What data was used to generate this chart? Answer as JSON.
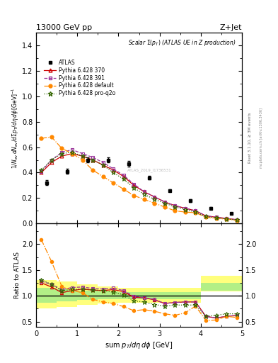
{
  "title_top": "13000 GeV pp",
  "title_right": "Z+Jet",
  "plot_title": "Scalar Σ(p_T) (ATLAS UE in Z production)",
  "ylabel_main": "1/N_{ev} dN_{ev}/dsum p_T/dη dφ  [GeV]^{-1}",
  "ylabel_ratio": "Ratio to ATLAS",
  "xlabel": "sum p_T/dη dφ [GeV]",
  "right_label": "Rivet 3.1.10, ≥ 3M events",
  "watermark": "mcplots.cern.ch [arXiv:1306.3436]",
  "atlas_label": "ATLAS_2019_I1736531",
  "atlas_x": [
    0.25,
    0.75,
    1.25,
    1.75,
    2.25,
    2.75,
    3.25,
    3.75,
    4.25,
    4.75
  ],
  "atlas_y": [
    0.32,
    0.41,
    0.5,
    0.5,
    0.47,
    0.36,
    0.26,
    0.18,
    0.12,
    0.08
  ],
  "atlas_yerr": [
    0.02,
    0.02,
    0.02,
    0.02,
    0.02,
    0.015,
    0.01,
    0.01,
    0.008,
    0.005
  ],
  "p370_x": [
    0.125,
    0.375,
    0.625,
    0.875,
    1.125,
    1.375,
    1.625,
    1.875,
    2.125,
    2.375,
    2.625,
    2.875,
    3.125,
    3.375,
    3.625,
    3.875,
    4.125,
    4.375,
    4.625,
    4.875
  ],
  "p370_y": [
    0.4,
    0.48,
    0.53,
    0.55,
    0.53,
    0.5,
    0.46,
    0.42,
    0.37,
    0.3,
    0.25,
    0.21,
    0.17,
    0.14,
    0.12,
    0.1,
    0.06,
    0.05,
    0.04,
    0.03
  ],
  "p391_x": [
    0.125,
    0.375,
    0.625,
    0.875,
    1.125,
    1.375,
    1.625,
    1.875,
    2.125,
    2.375,
    2.625,
    2.875,
    3.125,
    3.375,
    3.625,
    3.875,
    4.125,
    4.375,
    4.625,
    4.875
  ],
  "p391_y": [
    0.41,
    0.5,
    0.56,
    0.58,
    0.55,
    0.52,
    0.48,
    0.43,
    0.38,
    0.31,
    0.25,
    0.21,
    0.17,
    0.14,
    0.12,
    0.1,
    0.06,
    0.05,
    0.04,
    0.03
  ],
  "pdef_x": [
    0.125,
    0.375,
    0.625,
    0.875,
    1.125,
    1.375,
    1.625,
    1.875,
    2.125,
    2.375,
    2.625,
    2.875,
    3.125,
    3.375,
    3.625,
    3.875,
    4.125,
    4.375,
    4.625,
    4.875
  ],
  "pdef_y": [
    0.67,
    0.68,
    0.59,
    0.55,
    0.5,
    0.42,
    0.37,
    0.32,
    0.27,
    0.22,
    0.19,
    0.16,
    0.13,
    0.1,
    0.09,
    0.085,
    0.05,
    0.04,
    0.035,
    0.025
  ],
  "pq2o_x": [
    0.125,
    0.375,
    0.625,
    0.875,
    1.125,
    1.375,
    1.625,
    1.875,
    2.125,
    2.375,
    2.625,
    2.875,
    3.125,
    3.375,
    3.625,
    3.875,
    4.125,
    4.375,
    4.625,
    4.875
  ],
  "pq2o_y": [
    0.42,
    0.5,
    0.55,
    0.56,
    0.53,
    0.5,
    0.46,
    0.4,
    0.35,
    0.28,
    0.23,
    0.19,
    0.16,
    0.13,
    0.11,
    0.09,
    0.055,
    0.045,
    0.036,
    0.028
  ],
  "ratio_p370_x": [
    0.125,
    0.375,
    0.625,
    0.875,
    1.125,
    1.375,
    1.625,
    1.875,
    2.125,
    2.375,
    2.625,
    2.875,
    3.125,
    3.375,
    3.625,
    3.875,
    4.125,
    4.375,
    4.625,
    4.875
  ],
  "ratio_p370_y": [
    1.25,
    1.17,
    1.06,
    1.1,
    1.13,
    1.11,
    1.1,
    1.12,
    1.08,
    0.97,
    0.96,
    0.92,
    0.85,
    0.87,
    0.88,
    0.88,
    0.6,
    0.57,
    0.6,
    0.62
  ],
  "ratio_p391_x": [
    0.125,
    0.375,
    0.625,
    0.875,
    1.125,
    1.375,
    1.625,
    1.875,
    2.125,
    2.375,
    2.625,
    2.875,
    3.125,
    3.375,
    3.625,
    3.875,
    4.125,
    4.375,
    4.625,
    4.875
  ],
  "ratio_p391_y": [
    1.28,
    1.22,
    1.12,
    1.16,
    1.17,
    1.14,
    1.13,
    1.15,
    1.1,
    0.99,
    0.96,
    0.93,
    0.85,
    0.87,
    0.88,
    0.88,
    0.6,
    0.57,
    0.6,
    0.62
  ],
  "ratio_pdef_x": [
    0.125,
    0.375,
    0.625,
    0.875,
    1.125,
    1.375,
    1.625,
    1.875,
    2.125,
    2.375,
    2.625,
    2.875,
    3.125,
    3.375,
    3.625,
    3.875,
    4.125,
    4.375,
    4.625,
    4.875
  ],
  "ratio_pdef_y": [
    2.09,
    1.66,
    1.18,
    1.1,
    1.06,
    0.93,
    0.88,
    0.85,
    0.79,
    0.71,
    0.73,
    0.7,
    0.65,
    0.62,
    0.67,
    0.8,
    0.52,
    0.53,
    0.6,
    0.58
  ],
  "ratio_pq2o_x": [
    0.125,
    0.375,
    0.625,
    0.875,
    1.125,
    1.375,
    1.625,
    1.875,
    2.125,
    2.375,
    2.625,
    2.875,
    3.125,
    3.375,
    3.625,
    3.875,
    4.125,
    4.375,
    4.625,
    4.875
  ],
  "ratio_pq2o_y": [
    1.31,
    1.22,
    1.1,
    1.12,
    1.13,
    1.11,
    1.1,
    1.07,
    1.02,
    0.9,
    0.88,
    0.83,
    0.8,
    0.82,
    0.82,
    0.82,
    0.6,
    0.62,
    0.65,
    0.65
  ],
  "band_x_edges": [
    0.0,
    0.5,
    1.0,
    1.5,
    2.0,
    2.5,
    3.0,
    3.5,
    4.0,
    4.5,
    5.0
  ],
  "band_yellow_lo": [
    0.75,
    0.78,
    0.82,
    0.85,
    0.87,
    0.87,
    0.87,
    0.87,
    1.08,
    1.08,
    1.08
  ],
  "band_yellow_hi": [
    1.3,
    1.28,
    1.22,
    1.18,
    1.15,
    1.15,
    1.15,
    1.15,
    1.38,
    1.38,
    1.38
  ],
  "band_green_lo": [
    0.87,
    0.89,
    0.92,
    0.93,
    0.94,
    0.94,
    0.94,
    0.94,
    1.1,
    1.1,
    1.1
  ],
  "band_green_hi": [
    1.15,
    1.13,
    1.1,
    1.08,
    1.07,
    1.07,
    1.07,
    1.07,
    1.25,
    1.25,
    1.25
  ],
  "color_atlas": "#000000",
  "color_p370": "#cc0000",
  "color_p391": "#993399",
  "color_pdef": "#ff8800",
  "color_pq2o": "#336600",
  "color_yellow": "#ffff66",
  "color_green": "#aaee88",
  "xlim_main": [
    0,
    5
  ],
  "xlim_ratio": [
    0,
    5
  ],
  "ylim_main": [
    0.0,
    1.5
  ],
  "ylim_ratio": [
    0.4,
    2.4
  ],
  "yticks_ratio": [
    0.5,
    1.0,
    1.5,
    2.0
  ]
}
